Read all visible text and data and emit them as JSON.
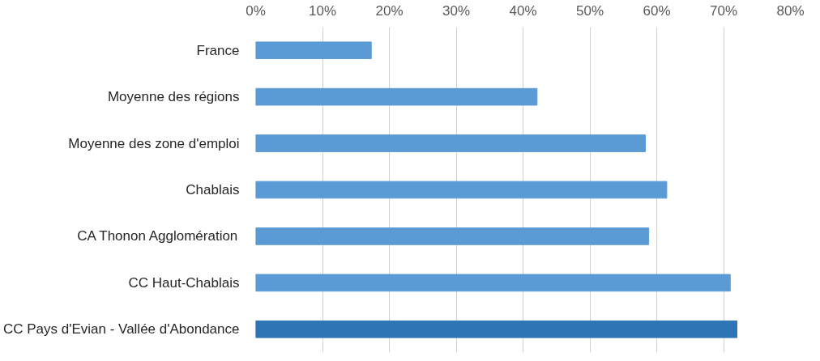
{
  "chart_data": {
    "type": "bar",
    "orientation": "horizontal",
    "categories": [
      "France",
      "Moyenne des régions",
      "Moyenne des zone d'emploi",
      "Chablais",
      "CA Thonon Agglomération",
      "CC Haut-Chablais",
      "CC Pays d'Evian - Vallée d'Abondance"
    ],
    "values": [
      17.3,
      42.1,
      58.3,
      61.5,
      58.8,
      71.0,
      72.0
    ],
    "colors": [
      "#5b9bd5",
      "#5b9bd5",
      "#5b9bd5",
      "#5b9bd5",
      "#5b9bd5",
      "#5b9bd5",
      "#2e75b6"
    ],
    "xlim": [
      0,
      80
    ],
    "xticks": [
      {
        "value": 0,
        "label": "0%"
      },
      {
        "value": 10,
        "label": "10%"
      },
      {
        "value": 20,
        "label": "20%"
      },
      {
        "value": 30,
        "label": "30%"
      },
      {
        "value": 40,
        "label": "40%"
      },
      {
        "value": 50,
        "label": "50%"
      },
      {
        "value": 60,
        "label": "60%"
      },
      {
        "value": 70,
        "label": "70%"
      },
      {
        "value": 80,
        "label": "80%"
      }
    ],
    "grid": "x"
  }
}
